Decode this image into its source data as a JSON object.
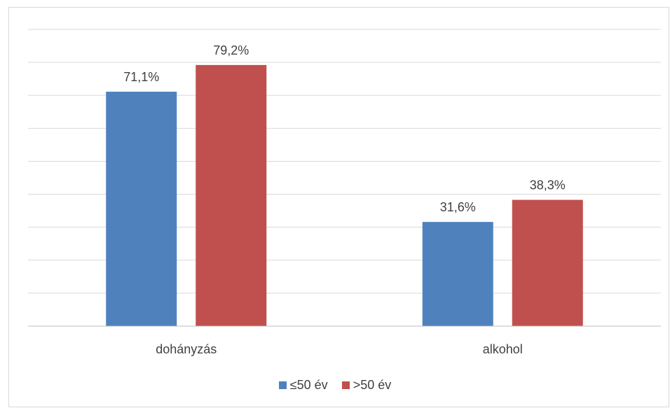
{
  "chart_data": {
    "type": "bar",
    "categories": [
      "dohányzás",
      "alkohol"
    ],
    "series": [
      {
        "name": "≤50 év",
        "values": [
          71.1,
          31.6
        ],
        "labels": [
          "71,1%",
          "31,6%"
        ],
        "color": "#4f81bd"
      },
      {
        "name": ">50 év",
        "values": [
          79.2,
          38.3
        ],
        "labels": [
          "79,2%",
          "38,3%"
        ],
        "color": "#c0504d"
      }
    ],
    "title": "",
    "xlabel": "",
    "ylabel": "",
    "ylim": [
      0,
      90
    ],
    "gridlines": true,
    "legend_position": "bottom"
  }
}
